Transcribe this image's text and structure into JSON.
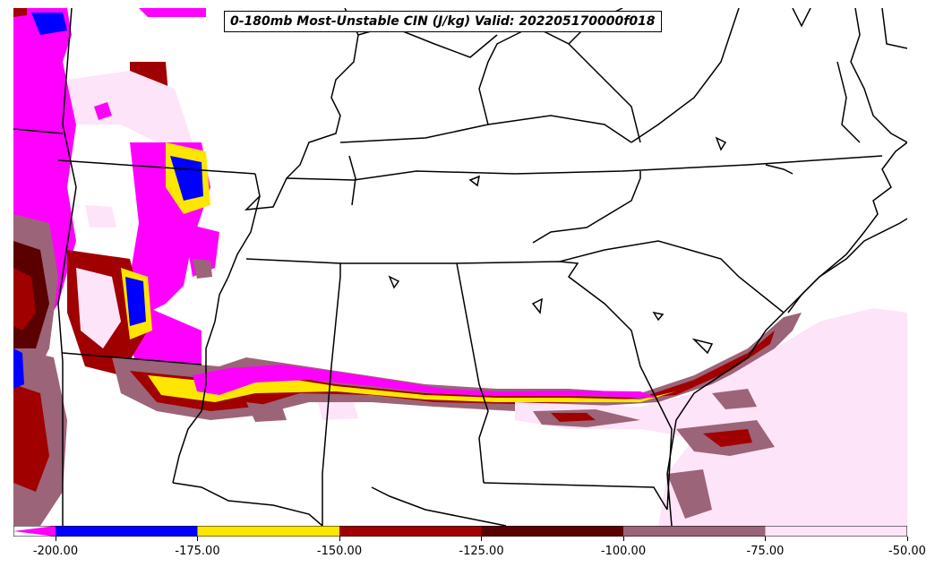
{
  "title": "0-180mb Most-Unstable CIN (J/kg) Valid: 202205170000f018",
  "legend": {
    "ticks": [
      "-200.00",
      "-175.00",
      "-150.00",
      "-125.00",
      "-100.00",
      "-75.00",
      "-50.00"
    ],
    "colors": [
      "#ff00ff",
      "#0000ff",
      "#ffe600",
      "#a00000",
      "#5a0000",
      "#9c6478",
      "#fde4f8"
    ],
    "extend": "min"
  },
  "map": {
    "region": "Southeastern United States",
    "features": [
      "state-borders",
      "coastlines",
      "lakes",
      "rivers"
    ]
  }
}
